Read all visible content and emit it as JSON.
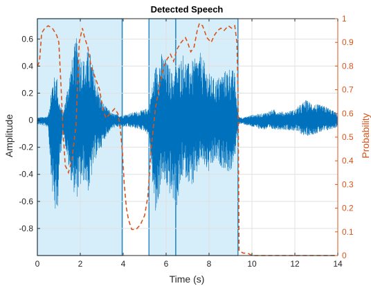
{
  "chart_data": {
    "type": "line",
    "title": "Detected Speech",
    "xlabel": "Time (s)",
    "ylabel": "Amplitude",
    "ylabel_right": "Probability",
    "xlim": [
      0,
      14
    ],
    "ylim": [
      -1.0,
      0.75
    ],
    "ylim_right": [
      0,
      1
    ],
    "x_ticks": [
      0,
      2,
      4,
      6,
      8,
      10,
      12,
      14
    ],
    "x_tick_labels": [
      "0",
      "2",
      "4",
      "6",
      "8",
      "10",
      "12",
      "14"
    ],
    "y_ticks": [
      0.6,
      0.4,
      0.2,
      0,
      -0.2,
      -0.4,
      -0.6,
      -0.8
    ],
    "y_tick_labels": [
      "0.6",
      "0.4",
      "0.2",
      "0",
      "-0.2",
      "-0.4",
      "-0.6",
      "-0.8"
    ],
    "y_ticks_right": [
      1,
      0.9,
      0.8,
      0.7,
      0.6,
      0.5,
      0.4,
      0.3,
      0.2,
      0.1,
      0
    ],
    "y_tick_labels_right": [
      "1",
      "0.9",
      "0.8",
      "0.7",
      "0.6",
      "0.5",
      "0.4",
      "0.3",
      "0.2",
      "0.1",
      "0"
    ],
    "grid": true,
    "colors": {
      "waveform": "#0072BD",
      "probability": "#D95319",
      "region_fill": "#D6EEFA",
      "region_edge": "#0072BD",
      "axis": "#262626",
      "grid": "#e0e0e0"
    },
    "speech_regions": [
      {
        "start": 0.0,
        "end": 3.95
      },
      {
        "start": 5.2,
        "end": 6.45
      },
      {
        "start": 6.45,
        "end": 9.35
      }
    ],
    "waveform_envelope": {
      "x": [
        0.0,
        0.5,
        0.7,
        0.9,
        1.0,
        1.2,
        1.5,
        1.8,
        2.0,
        2.2,
        2.4,
        2.6,
        2.8,
        3.0,
        3.2,
        3.5,
        3.8,
        4.0,
        4.5,
        5.0,
        5.2,
        5.5,
        5.8,
        6.0,
        6.3,
        6.5,
        6.8,
        7.0,
        7.3,
        7.6,
        8.0,
        8.3,
        8.6,
        9.0,
        9.2,
        9.35,
        9.6,
        10.0,
        10.5,
        11.0,
        11.5,
        12.0,
        12.5,
        13.0,
        13.5,
        14.0
      ],
      "upper": [
        0.02,
        0.03,
        0.3,
        0.35,
        0.15,
        0.05,
        0.35,
        0.62,
        0.5,
        0.45,
        0.55,
        0.4,
        0.25,
        0.15,
        0.1,
        0.05,
        0.04,
        0.04,
        0.06,
        0.08,
        0.1,
        0.4,
        0.5,
        0.45,
        0.35,
        0.4,
        0.5,
        0.42,
        0.45,
        0.5,
        0.35,
        0.3,
        0.35,
        0.4,
        0.35,
        0.03,
        0.02,
        0.04,
        0.05,
        0.08,
        0.06,
        0.08,
        0.15,
        0.12,
        0.1,
        0.05
      ],
      "lower": [
        -0.03,
        -0.05,
        -0.55,
        -0.78,
        -0.45,
        -0.08,
        -0.4,
        -0.6,
        -0.5,
        -0.45,
        -0.55,
        -0.35,
        -0.25,
        -0.2,
        -0.12,
        -0.06,
        -0.05,
        -0.05,
        -0.06,
        -0.08,
        -0.12,
        -0.75,
        -0.45,
        -0.5,
        -0.6,
        -0.65,
        -0.4,
        -0.45,
        -0.5,
        -0.3,
        -0.4,
        -0.3,
        -0.35,
        -0.4,
        -0.3,
        -0.03,
        -0.03,
        -0.05,
        -0.07,
        -0.07,
        -0.07,
        -0.08,
        -0.12,
        -0.1,
        -0.08,
        -0.05
      ]
    },
    "probability": {
      "x": [
        0.0,
        0.1,
        0.2,
        0.35,
        0.5,
        0.7,
        0.9,
        1.0,
        1.1,
        1.2,
        1.3,
        1.45,
        1.6,
        1.8,
        1.95,
        2.1,
        2.2,
        2.35,
        2.5,
        2.7,
        2.9,
        3.05,
        3.2,
        3.4,
        3.6,
        3.75,
        3.85,
        3.95,
        4.05,
        4.15,
        4.25,
        4.4,
        4.6,
        4.8,
        5.0,
        5.15,
        5.3,
        5.5,
        5.7,
        5.9,
        6.05,
        6.2,
        6.35,
        6.5,
        6.7,
        6.9,
        7.0,
        7.15,
        7.3,
        7.45,
        7.55,
        7.7,
        7.9,
        8.1,
        8.25,
        8.4,
        8.55,
        8.7,
        8.9,
        9.05,
        9.2,
        9.3,
        9.35,
        9.4,
        9.6,
        9.8,
        10.0,
        10.5,
        11.0,
        12.0,
        13.0,
        14.0
      ],
      "y": [
        0.8,
        0.82,
        0.94,
        0.96,
        0.97,
        0.96,
        0.93,
        0.9,
        0.72,
        0.52,
        0.38,
        0.35,
        0.4,
        0.55,
        0.9,
        0.96,
        0.92,
        0.88,
        0.8,
        0.75,
        0.7,
        0.62,
        0.58,
        0.6,
        0.62,
        0.6,
        0.55,
        0.45,
        0.3,
        0.2,
        0.15,
        0.11,
        0.11,
        0.13,
        0.17,
        0.25,
        0.45,
        0.62,
        0.72,
        0.8,
        0.83,
        0.85,
        0.82,
        0.87,
        0.9,
        0.92,
        0.9,
        0.86,
        0.88,
        0.95,
        0.98,
        0.97,
        0.92,
        0.9,
        0.93,
        0.95,
        0.96,
        0.95,
        0.97,
        0.96,
        0.97,
        0.9,
        0.7,
        0.02,
        0.01,
        0.01,
        0.0,
        0.0,
        0.0,
        0.0,
        0.0,
        0.0
      ]
    }
  }
}
